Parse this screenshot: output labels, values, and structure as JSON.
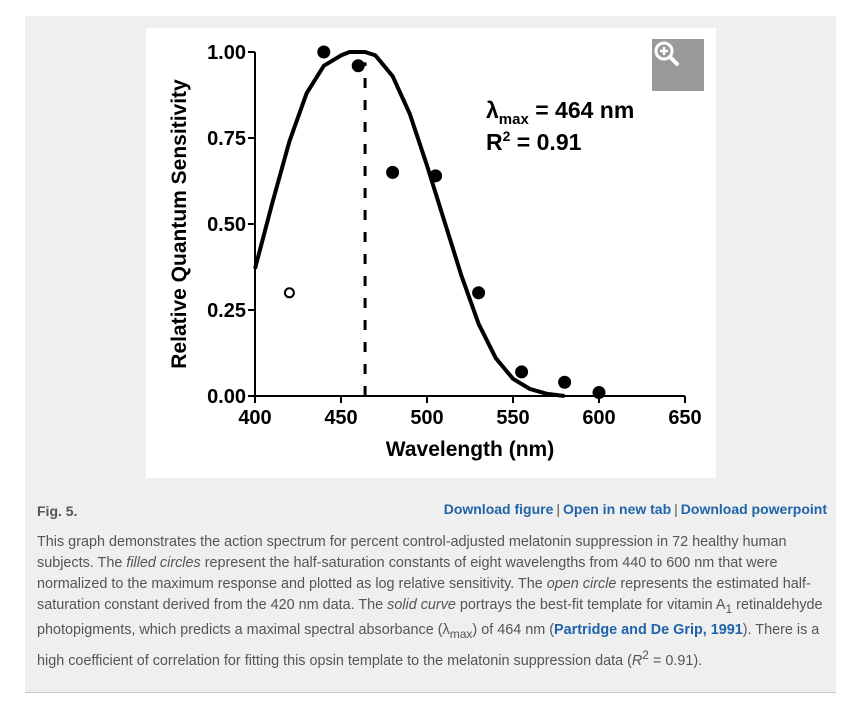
{
  "figure": {
    "label": "Fig. 5.",
    "zoom_icon": "magnifier-plus-icon",
    "links": {
      "download_figure": "Download figure",
      "open_new_tab": "Open in new tab",
      "download_powerpoint": "Download powerpoint",
      "separator": "|"
    },
    "caption": {
      "p1": "This graph demonstrates the action spectrum for percent control-adjusted melatonin suppression in 72 healthy human subjects. The ",
      "em1": "filled circles",
      "p2": " represent the half-saturation constants of eight wavelengths from 440 to 600 nm that were normalized to the maximum response and plotted as log relative sensitivity. The ",
      "em2": "open circle",
      "p3": " represents the estimated half-saturation constant derived from the 420 nm data. The ",
      "em3": "solid curve",
      "p4": " portrays the best-fit template for vitamin A",
      "sub1": "1",
      "p5": " retinaldehyde photopigments, which predicts a maximal spectral absorbance (λ",
      "sub2": "max",
      "p6": ") of 464 nm (",
      "ref": "Partridge and De Grip, 1991",
      "p7": "). There is a high coefficient of correlation for fitting this opsin template to the melatonin suppression data (",
      "em4": "R",
      "sup1": "2",
      "p8": " = 0.91)."
    },
    "colors": {
      "link": "#1f63a8",
      "text": "#555555",
      "panel": "#efefef",
      "zoom_button": "#9a9a9a"
    }
  },
  "chart_data": {
    "type": "scatter",
    "xlabel": "Wavelength (nm)",
    "ylabel": "Relative Quantum Sensitivity",
    "xlim": [
      400,
      650
    ],
    "ylim": [
      0,
      1.0
    ],
    "x_ticks": [
      "400",
      "450",
      "500",
      "550",
      "600",
      "650"
    ],
    "y_ticks": [
      "0.00",
      "0.25",
      "0.50",
      "0.75",
      "1.00"
    ],
    "series": [
      {
        "marker": "filled-circle",
        "x": [
          440,
          460,
          480,
          505,
          530,
          555,
          580,
          600
        ],
        "y": [
          1.0,
          0.96,
          0.65,
          0.64,
          0.3,
          0.07,
          0.04,
          0.01
        ]
      },
      {
        "marker": "open-circle",
        "x": [
          420
        ],
        "y": [
          0.3
        ]
      }
    ],
    "curve": {
      "style": "solid",
      "peak_x": 464,
      "x": [
        400,
        410,
        420,
        430,
        440,
        450,
        455,
        460,
        464,
        470,
        480,
        490,
        500,
        510,
        520,
        530,
        540,
        550,
        560,
        570,
        580
      ],
      "y": [
        0.37,
        0.56,
        0.74,
        0.88,
        0.96,
        0.99,
        1.0,
        1.0,
        1.0,
        0.99,
        0.93,
        0.82,
        0.67,
        0.51,
        0.35,
        0.21,
        0.11,
        0.05,
        0.02,
        0.006,
        0.0
      ]
    },
    "reference_line": {
      "style": "dashed",
      "x": 464
    },
    "annotation": {
      "lambda_line": "λmax = 464 nm",
      "lambda_symbol": "λ",
      "lambda_sub": "max",
      "lambda_rest": " = 464 nm",
      "r2_base": "R",
      "r2_sup": "2",
      "r2_rest": " = 0.91"
    },
    "grid": false,
    "legend": "none"
  }
}
